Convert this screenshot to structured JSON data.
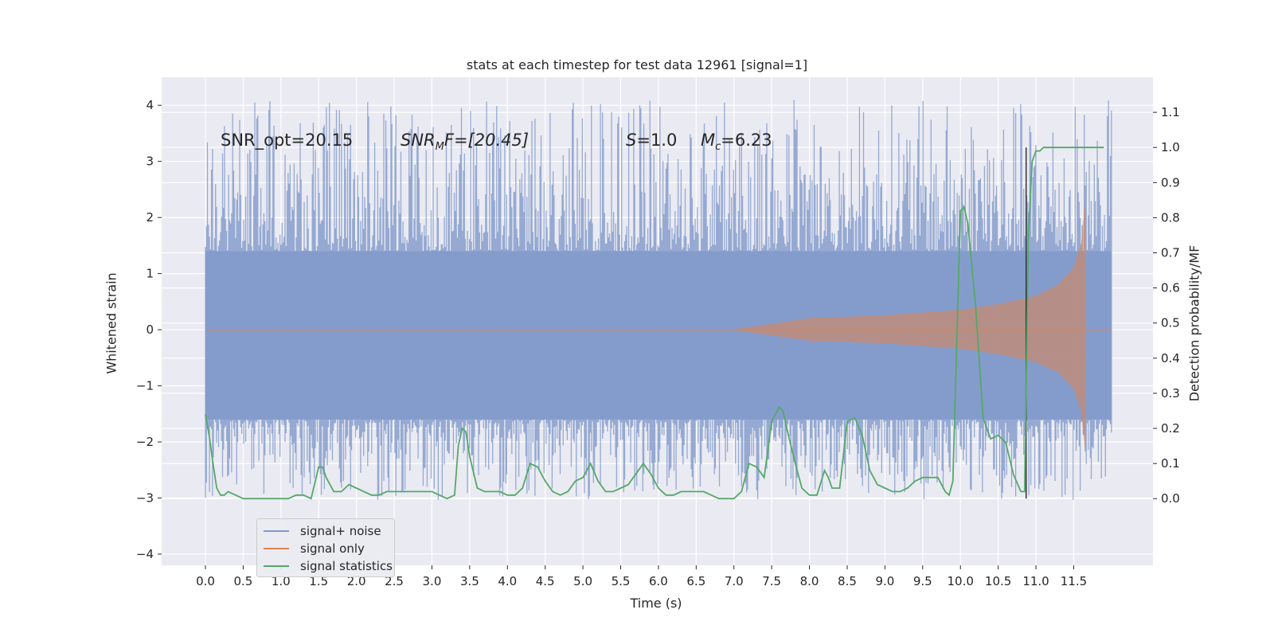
{
  "chart_data": {
    "type": "line",
    "title": "stats at each timestep for test data 12961 [signal=1]",
    "xlabel": "Time (s)",
    "ylabel": "Whitened strain",
    "ylabel_right": "Detection probability/MF",
    "xlim": [
      -0.58,
      12.55
    ],
    "ylim": [
      -4.2,
      4.5
    ],
    "ylim_right": [
      -0.19,
      1.2
    ],
    "x_ticks": [
      0.0,
      0.5,
      1.0,
      1.5,
      2.0,
      2.5,
      3.0,
      3.5,
      4.0,
      4.5,
      5.0,
      5.5,
      6.0,
      6.5,
      7.0,
      7.5,
      8.0,
      8.5,
      9.0,
      9.5,
      10.0,
      10.5,
      11.0,
      11.5
    ],
    "x_tick_labels": [
      "0.0",
      "0.5",
      "1.0",
      "1.5",
      "2.0",
      "2.5",
      "3.0",
      "3.5",
      "4.0",
      "4.5",
      "5.0",
      "5.5",
      "6.0",
      "6.5",
      "7.0",
      "7.5",
      "8.0",
      "8.5",
      "9.0",
      "9.5",
      "10.0",
      "10.5",
      "11.0",
      "11.5"
    ],
    "y_ticks": [
      -4,
      -3,
      -2,
      -1,
      0,
      1,
      2,
      3,
      4
    ],
    "y_tick_labels": [
      "−4",
      "−3",
      "−2",
      "−1",
      "0",
      "1",
      "2",
      "3",
      "4"
    ],
    "y_right_ticks": [
      0.0,
      0.1,
      0.2,
      0.3,
      0.4,
      0.5,
      0.6,
      0.7,
      0.8,
      0.9,
      1.0,
      1.1
    ],
    "y_right_tick_labels": [
      "0.0",
      "0.1",
      "0.2",
      "0.3",
      "0.4",
      "0.5",
      "0.6",
      "0.7",
      "0.8",
      "0.9",
      "1.0",
      "1.1"
    ],
    "grid": true,
    "legend_position": "lower-left",
    "colors": {
      "signal_noise": "#8099c9",
      "signal_only": "#dd8452",
      "statistics": "#55a868",
      "marker": "#333333",
      "background": "#eaeaf2",
      "grid": "#ffffff"
    },
    "series": [
      {
        "name": "signal+ noise",
        "axis": "left",
        "description_values": {
          "x_range": [
            0.0,
            12.0
          ],
          "core_band": [
            -1.6,
            1.4
          ],
          "typical_peaks": [
            -3.2,
            4.1
          ]
        }
      },
      {
        "name": "signal only",
        "axis": "left",
        "x": [
          0.0,
          7.0,
          7.5,
          8.0,
          9.0,
          10.0,
          10.5,
          11.0,
          11.3,
          11.5,
          11.6,
          11.65,
          11.66,
          12.0
        ],
        "y": [
          0.0,
          0.0,
          0.1,
          0.2,
          0.25,
          0.35,
          0.45,
          0.6,
          0.8,
          1.1,
          1.5,
          2.2,
          0.0,
          0.0
        ]
      },
      {
        "name": "signal statistics",
        "axis": "right",
        "x": [
          0.0,
          0.05,
          0.1,
          0.15,
          0.2,
          0.25,
          0.3,
          0.4,
          0.5,
          0.6,
          0.7,
          0.8,
          0.9,
          1.0,
          1.1,
          1.2,
          1.3,
          1.4,
          1.5,
          1.55,
          1.6,
          1.7,
          1.8,
          1.9,
          2.0,
          2.1,
          2.2,
          2.3,
          2.4,
          2.5,
          2.6,
          2.7,
          2.8,
          2.9,
          3.0,
          3.1,
          3.2,
          3.3,
          3.35,
          3.4,
          3.45,
          3.5,
          3.6,
          3.7,
          3.8,
          3.9,
          4.0,
          4.1,
          4.2,
          4.3,
          4.4,
          4.5,
          4.6,
          4.7,
          4.8,
          4.9,
          5.0,
          5.1,
          5.2,
          5.3,
          5.4,
          5.5,
          5.6,
          5.7,
          5.8,
          5.9,
          6.0,
          6.1,
          6.2,
          6.3,
          6.4,
          6.5,
          6.6,
          6.7,
          6.8,
          6.9,
          7.0,
          7.1,
          7.2,
          7.3,
          7.4,
          7.5,
          7.6,
          7.65,
          7.7,
          7.8,
          7.9,
          8.0,
          8.1,
          8.2,
          8.25,
          8.3,
          8.4,
          8.5,
          8.6,
          8.7,
          8.8,
          8.9,
          9.0,
          9.1,
          9.2,
          9.3,
          9.4,
          9.5,
          9.6,
          9.7,
          9.8,
          9.85,
          9.9,
          10.0,
          10.05,
          10.1,
          10.2,
          10.3,
          10.4,
          10.5,
          10.6,
          10.7,
          10.8,
          10.85,
          10.9,
          10.95,
          11.0,
          11.05,
          11.1,
          11.2,
          11.3,
          11.5,
          11.7,
          11.9
        ],
        "y": [
          0.24,
          0.18,
          0.1,
          0.03,
          0.01,
          0.01,
          0.02,
          0.01,
          0.0,
          0.0,
          0.0,
          0.0,
          0.0,
          0.0,
          0.0,
          0.01,
          0.01,
          0.0,
          0.09,
          0.09,
          0.06,
          0.02,
          0.02,
          0.04,
          0.03,
          0.02,
          0.01,
          0.01,
          0.02,
          0.02,
          0.02,
          0.02,
          0.02,
          0.02,
          0.02,
          0.01,
          0.0,
          0.01,
          0.15,
          0.2,
          0.19,
          0.12,
          0.03,
          0.02,
          0.02,
          0.02,
          0.01,
          0.01,
          0.03,
          0.1,
          0.09,
          0.05,
          0.02,
          0.01,
          0.02,
          0.05,
          0.06,
          0.1,
          0.05,
          0.02,
          0.02,
          0.03,
          0.04,
          0.07,
          0.1,
          0.07,
          0.03,
          0.01,
          0.01,
          0.02,
          0.02,
          0.02,
          0.02,
          0.01,
          0.0,
          0.0,
          0.0,
          0.02,
          0.1,
          0.09,
          0.06,
          0.22,
          0.26,
          0.25,
          0.2,
          0.11,
          0.03,
          0.01,
          0.01,
          0.08,
          0.06,
          0.03,
          0.03,
          0.22,
          0.23,
          0.18,
          0.08,
          0.04,
          0.03,
          0.02,
          0.02,
          0.03,
          0.05,
          0.06,
          0.06,
          0.06,
          0.02,
          0.01,
          0.05,
          0.82,
          0.83,
          0.78,
          0.55,
          0.23,
          0.17,
          0.18,
          0.16,
          0.07,
          0.02,
          0.02,
          0.75,
          0.96,
          0.99,
          0.99,
          1.0,
          1.0,
          1.0,
          1.0,
          1.0,
          1.0
        ]
      }
    ],
    "vertical_line": {
      "x": 10.87,
      "y_right_range": [
        0.0,
        1.0
      ]
    },
    "annotations": [
      "SNR_opt=20.15",
      "SNR_MF=[20.45]",
      "S=1.0",
      "M_c=6.23"
    ]
  },
  "annotations_display": {
    "snr_opt": "SNR_opt=20.15",
    "snr_mf_base": "SNR",
    "snr_mf_sub": "M",
    "snr_mf_rest": "F=[20.45]",
    "s_label": "S",
    "s_value": "=1.0",
    "mc_base": "M",
    "mc_sub": "c",
    "mc_value": "=6.23"
  }
}
